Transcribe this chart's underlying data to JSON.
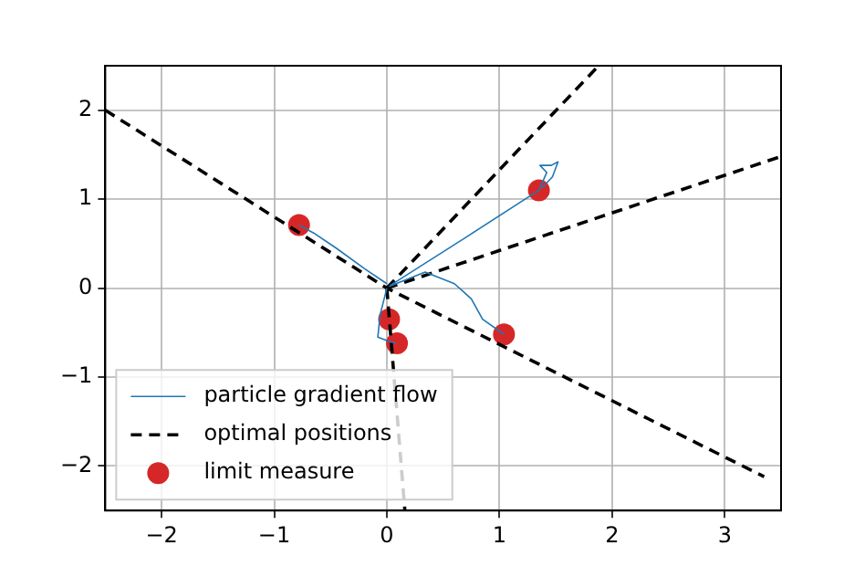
{
  "chart_data": {
    "type": "line",
    "xlim": [
      -2.5,
      3.5
    ],
    "ylim": [
      -2.5,
      2.5
    ],
    "xticks": [
      {
        "value": -2,
        "label": "−2"
      },
      {
        "value": -1,
        "label": "−1"
      },
      0,
      1,
      2,
      3
    ],
    "yticks": [
      {
        "value": -2,
        "label": "−2"
      },
      {
        "value": -1,
        "label": "−1"
      },
      0,
      1,
      2
    ],
    "grid": true,
    "legend": "bottom left",
    "series": [
      {
        "name": "particle gradient flow",
        "type": "line",
        "color": "#1f77b4",
        "x": [
          0.0,
          -0.2,
          -0.45,
          -0.65,
          -0.78,
          null,
          0.03,
          0.7,
          1.35,
          1.42,
          1.36,
          1.46,
          1.52,
          1.47,
          1.38,
          null,
          0.02,
          0.34,
          0.6,
          0.75,
          0.85,
          1.04,
          null,
          0,
          -0.06,
          -0.08,
          0.02,
          0.08
        ],
        "values": [
          0.05,
          0.22,
          0.45,
          0.62,
          0.71,
          null,
          0.03,
          0.57,
          1.1,
          1.3,
          1.38,
          1.38,
          1.42,
          1.25,
          1.13,
          null,
          0.02,
          0.18,
          0.05,
          -0.12,
          -0.35,
          -0.52,
          null,
          0,
          -0.3,
          -0.55,
          -0.6,
          -0.62
        ]
      },
      {
        "name": "optimal positions",
        "type": "line",
        "color": "#000000",
        "line_style": "dashed",
        "x": [
          -2.5,
          0,
          3.35,
          null,
          0,
          1.88,
          null,
          0,
          3.5,
          null,
          0,
          0.16
        ],
        "values": [
          2.0,
          0,
          -2.12,
          null,
          0,
          2.5,
          null,
          0,
          1.48,
          null,
          0,
          -2.5
        ]
      },
      {
        "name": "limit measure",
        "type": "scatter",
        "color": "#d62728",
        "marker": "circle",
        "x": [
          -0.78,
          1.35,
          1.04,
          0.02,
          0.09
        ],
        "values": [
          0.71,
          1.1,
          -0.52,
          -0.35,
          -0.62
        ]
      }
    ]
  }
}
